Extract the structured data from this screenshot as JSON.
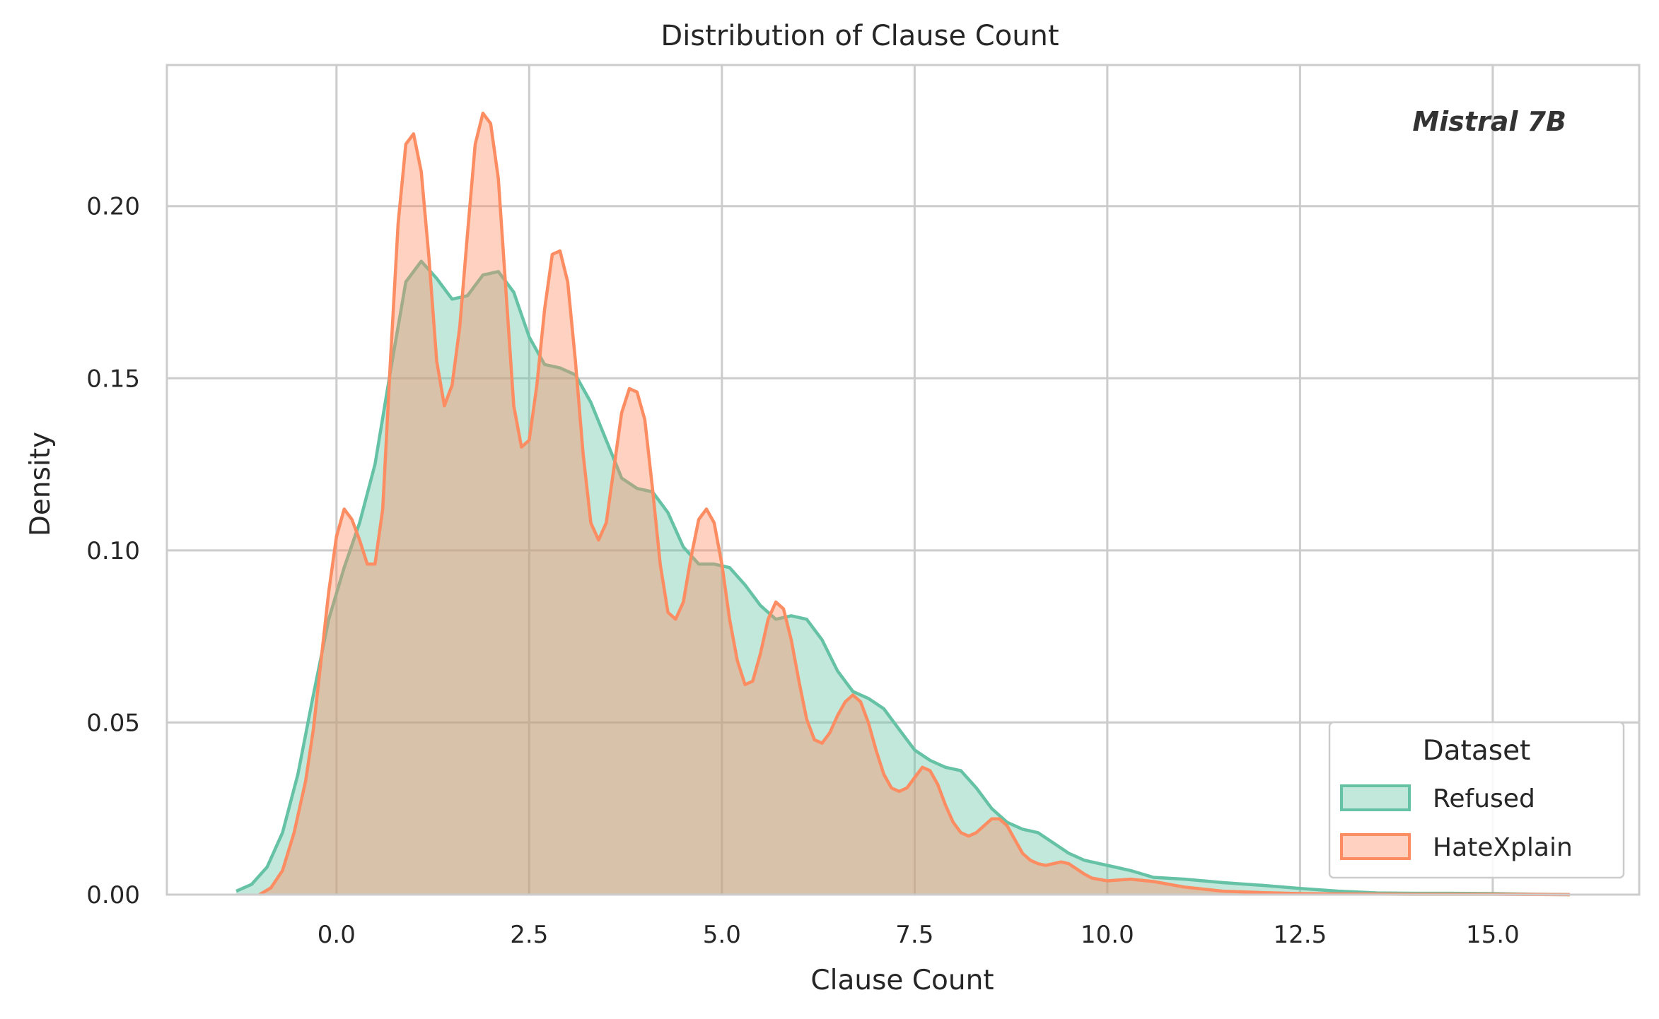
{
  "chart_data": {
    "type": "area",
    "title": "Distribution of Clause Count",
    "xlabel": "Clause Count",
    "ylabel": "Density",
    "xlim": [
      -2.2,
      16.9
    ],
    "ylim": [
      0,
      0.241
    ],
    "x_ticks": [
      0.0,
      2.5,
      5.0,
      7.5,
      10.0,
      12.5,
      15.0
    ],
    "x_tick_labels": [
      "0.0",
      "2.5",
      "5.0",
      "7.5",
      "10.0",
      "12.5",
      "15.0"
    ],
    "y_ticks": [
      0.0,
      0.05,
      0.1,
      0.15,
      0.2
    ],
    "y_tick_labels": [
      "0.00",
      "0.05",
      "0.10",
      "0.15",
      "0.20"
    ],
    "grid": true,
    "annotation": "Mistral 7B",
    "legend": {
      "title": "Dataset",
      "placement": "lower-right"
    },
    "series": [
      {
        "name": "Refused",
        "color": "#66c2a5",
        "fill_opacity": 0.4,
        "points": [
          [
            -1.3,
            0.001
          ],
          [
            -1.1,
            0.003
          ],
          [
            -0.9,
            0.008
          ],
          [
            -0.7,
            0.018
          ],
          [
            -0.5,
            0.035
          ],
          [
            -0.3,
            0.058
          ],
          [
            -0.1,
            0.08
          ],
          [
            0.1,
            0.095
          ],
          [
            0.3,
            0.108
          ],
          [
            0.5,
            0.125
          ],
          [
            0.7,
            0.152
          ],
          [
            0.9,
            0.178
          ],
          [
            1.1,
            0.184
          ],
          [
            1.3,
            0.179
          ],
          [
            1.5,
            0.173
          ],
          [
            1.7,
            0.174
          ],
          [
            1.9,
            0.18
          ],
          [
            2.1,
            0.181
          ],
          [
            2.3,
            0.175
          ],
          [
            2.5,
            0.162
          ],
          [
            2.7,
            0.154
          ],
          [
            2.9,
            0.153
          ],
          [
            3.1,
            0.151
          ],
          [
            3.3,
            0.143
          ],
          [
            3.5,
            0.132
          ],
          [
            3.7,
            0.121
          ],
          [
            3.9,
            0.118
          ],
          [
            4.1,
            0.117
          ],
          [
            4.3,
            0.111
          ],
          [
            4.5,
            0.101
          ],
          [
            4.7,
            0.096
          ],
          [
            4.9,
            0.096
          ],
          [
            5.1,
            0.095
          ],
          [
            5.3,
            0.09
          ],
          [
            5.5,
            0.084
          ],
          [
            5.7,
            0.08
          ],
          [
            5.9,
            0.081
          ],
          [
            6.1,
            0.08
          ],
          [
            6.3,
            0.074
          ],
          [
            6.5,
            0.065
          ],
          [
            6.7,
            0.059
          ],
          [
            6.9,
            0.057
          ],
          [
            7.1,
            0.054
          ],
          [
            7.3,
            0.048
          ],
          [
            7.5,
            0.042
          ],
          [
            7.7,
            0.039
          ],
          [
            7.9,
            0.037
          ],
          [
            8.1,
            0.036
          ],
          [
            8.3,
            0.031
          ],
          [
            8.5,
            0.025
          ],
          [
            8.7,
            0.021
          ],
          [
            8.9,
            0.019
          ],
          [
            9.1,
            0.018
          ],
          [
            9.3,
            0.015
          ],
          [
            9.5,
            0.012
          ],
          [
            9.7,
            0.01
          ],
          [
            9.9,
            0.009
          ],
          [
            10.1,
            0.008
          ],
          [
            10.3,
            0.007
          ],
          [
            10.6,
            0.005
          ],
          [
            11.0,
            0.0045
          ],
          [
            11.5,
            0.0035
          ],
          [
            12.0,
            0.0027
          ],
          [
            12.5,
            0.0018
          ],
          [
            13.0,
            0.001
          ],
          [
            13.5,
            0.0005
          ],
          [
            14.0,
            0.0004
          ],
          [
            14.5,
            0.0004
          ],
          [
            15.0,
            0.0003
          ],
          [
            15.5,
            0.0001
          ],
          [
            16.0,
            0.0
          ]
        ]
      },
      {
        "name": "HateXplain",
        "color": "#fc8d62",
        "fill_opacity": 0.4,
        "points": [
          [
            -1.0,
            0.0
          ],
          [
            -0.85,
            0.002
          ],
          [
            -0.7,
            0.007
          ],
          [
            -0.55,
            0.018
          ],
          [
            -0.4,
            0.033
          ],
          [
            -0.3,
            0.048
          ],
          [
            -0.2,
            0.068
          ],
          [
            -0.1,
            0.088
          ],
          [
            0.0,
            0.104
          ],
          [
            0.1,
            0.112
          ],
          [
            0.2,
            0.109
          ],
          [
            0.3,
            0.103
          ],
          [
            0.4,
            0.096
          ],
          [
            0.5,
            0.096
          ],
          [
            0.6,
            0.112
          ],
          [
            0.7,
            0.155
          ],
          [
            0.8,
            0.195
          ],
          [
            0.9,
            0.218
          ],
          [
            1.0,
            0.221
          ],
          [
            1.1,
            0.21
          ],
          [
            1.2,
            0.185
          ],
          [
            1.3,
            0.155
          ],
          [
            1.4,
            0.142
          ],
          [
            1.5,
            0.148
          ],
          [
            1.6,
            0.165
          ],
          [
            1.7,
            0.192
          ],
          [
            1.8,
            0.218
          ],
          [
            1.9,
            0.227
          ],
          [
            2.0,
            0.224
          ],
          [
            2.1,
            0.208
          ],
          [
            2.2,
            0.175
          ],
          [
            2.3,
            0.142
          ],
          [
            2.4,
            0.13
          ],
          [
            2.5,
            0.132
          ],
          [
            2.6,
            0.148
          ],
          [
            2.7,
            0.17
          ],
          [
            2.8,
            0.186
          ],
          [
            2.9,
            0.187
          ],
          [
            3.0,
            0.178
          ],
          [
            3.1,
            0.155
          ],
          [
            3.2,
            0.128
          ],
          [
            3.3,
            0.108
          ],
          [
            3.4,
            0.103
          ],
          [
            3.5,
            0.108
          ],
          [
            3.6,
            0.124
          ],
          [
            3.7,
            0.14
          ],
          [
            3.8,
            0.147
          ],
          [
            3.9,
            0.146
          ],
          [
            4.0,
            0.138
          ],
          [
            4.1,
            0.118
          ],
          [
            4.2,
            0.096
          ],
          [
            4.3,
            0.082
          ],
          [
            4.4,
            0.08
          ],
          [
            4.5,
            0.085
          ],
          [
            4.6,
            0.098
          ],
          [
            4.7,
            0.109
          ],
          [
            4.8,
            0.112
          ],
          [
            4.9,
            0.108
          ],
          [
            5.0,
            0.096
          ],
          [
            5.1,
            0.08
          ],
          [
            5.2,
            0.068
          ],
          [
            5.3,
            0.061
          ],
          [
            5.4,
            0.062
          ],
          [
            5.5,
            0.07
          ],
          [
            5.6,
            0.08
          ],
          [
            5.7,
            0.085
          ],
          [
            5.8,
            0.083
          ],
          [
            5.9,
            0.074
          ],
          [
            6.0,
            0.062
          ],
          [
            6.1,
            0.051
          ],
          [
            6.2,
            0.045
          ],
          [
            6.3,
            0.044
          ],
          [
            6.4,
            0.047
          ],
          [
            6.5,
            0.052
          ],
          [
            6.6,
            0.056
          ],
          [
            6.7,
            0.058
          ],
          [
            6.8,
            0.056
          ],
          [
            6.9,
            0.05
          ],
          [
            7.0,
            0.042
          ],
          [
            7.1,
            0.035
          ],
          [
            7.2,
            0.031
          ],
          [
            7.3,
            0.03
          ],
          [
            7.4,
            0.031
          ],
          [
            7.5,
            0.034
          ],
          [
            7.6,
            0.037
          ],
          [
            7.7,
            0.036
          ],
          [
            7.8,
            0.032
          ],
          [
            7.9,
            0.026
          ],
          [
            8.0,
            0.021
          ],
          [
            8.1,
            0.018
          ],
          [
            8.2,
            0.017
          ],
          [
            8.3,
            0.018
          ],
          [
            8.4,
            0.02
          ],
          [
            8.5,
            0.022
          ],
          [
            8.6,
            0.022
          ],
          [
            8.7,
            0.02
          ],
          [
            8.8,
            0.016
          ],
          [
            8.9,
            0.012
          ],
          [
            9.0,
            0.01
          ],
          [
            9.1,
            0.009
          ],
          [
            9.2,
            0.0085
          ],
          [
            9.3,
            0.009
          ],
          [
            9.4,
            0.0095
          ],
          [
            9.5,
            0.009
          ],
          [
            9.6,
            0.0075
          ],
          [
            9.7,
            0.006
          ],
          [
            9.8,
            0.0048
          ],
          [
            10.0,
            0.004
          ],
          [
            10.3,
            0.0045
          ],
          [
            10.6,
            0.0038
          ],
          [
            11.0,
            0.0022
          ],
          [
            11.5,
            0.001
          ],
          [
            12.0,
            0.0006
          ],
          [
            12.5,
            0.0003
          ],
          [
            13.0,
            0.0002
          ],
          [
            14.0,
            0.0001
          ],
          [
            15.0,
            0.0001
          ],
          [
            16.0,
            0.0
          ]
        ]
      }
    ]
  }
}
